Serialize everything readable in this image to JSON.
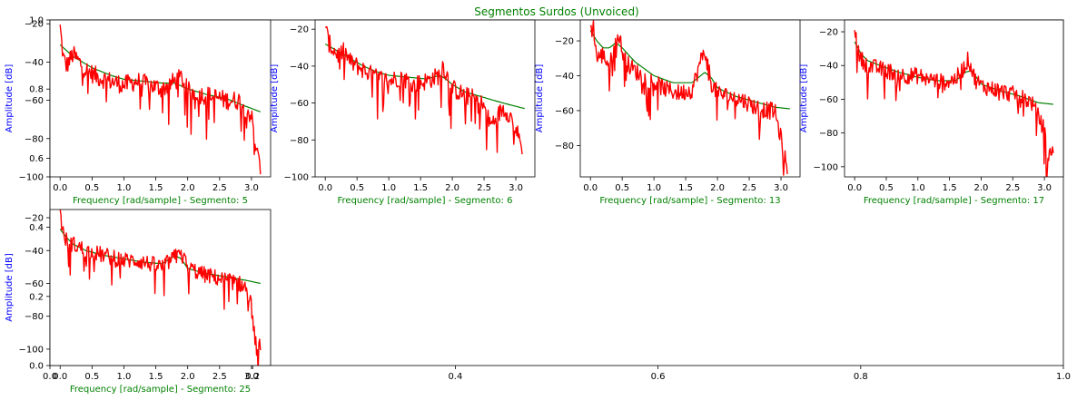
{
  "figure": {
    "suptitle": "Segmentos Surdos (Unvoiced)",
    "colors": {
      "title": "#008000",
      "xlabel": "#008000",
      "ylabel": "#0000ff",
      "envelope": "#008000",
      "spectrum": "#ff0000",
      "axis": "#000000"
    },
    "background_axes": {
      "xlim": [
        0,
        1
      ],
      "ylim": [
        0,
        1
      ],
      "xticks": [
        0.0,
        0.2,
        0.4,
        0.6,
        0.8,
        1.0
      ],
      "xtick_labels": [
        "0.0",
        "0.2",
        "0.4",
        "0.6",
        "0.8",
        "1.0"
      ],
      "yticks": [
        0.0,
        0.2,
        0.4,
        0.6,
        0.8,
        1.0
      ],
      "ytick_labels": [
        "0.0",
        "0.2",
        "0.4",
        "0.6",
        "0.8",
        "1.0"
      ]
    }
  },
  "chart_data": [
    {
      "type": "line",
      "xlabel": "Frequency [rad/sample] - Segmento: 5",
      "ylabel": "Amplitude [dB]",
      "xlim": [
        -0.16,
        3.3
      ],
      "ylim": [
        -100,
        -18
      ],
      "xticks": [
        0.0,
        0.5,
        1.0,
        1.5,
        2.0,
        2.5,
        3.0
      ],
      "xtick_labels": [
        "0.0",
        "0.5",
        "1.0",
        "1.5",
        "2.0",
        "2.5",
        "3.0"
      ],
      "yticks": [
        -20,
        -40,
        -60,
        -80,
        -100
      ],
      "ytick_labels": [
        "−20",
        "−40",
        "−60",
        "−80",
        "−100"
      ],
      "series": [
        {
          "role": "spectrum",
          "x": [
            0,
            0.05,
            0.1,
            0.2,
            0.3,
            0.4,
            0.5,
            0.6,
            0.8,
            1.0,
            1.2,
            1.4,
            1.6,
            1.8,
            1.9,
            2.0,
            2.2,
            2.4,
            2.6,
            2.8,
            2.9,
            3.0,
            3.05,
            3.1,
            3.14
          ],
          "y": [
            -22,
            -38,
            -42,
            -36,
            -40,
            -44,
            -46,
            -48,
            -50,
            -52,
            -50,
            -52,
            -54,
            -50,
            -48,
            -55,
            -57,
            -58,
            -60,
            -60,
            -64,
            -68,
            -80,
            -90,
            -95
          ]
        },
        {
          "role": "envelope",
          "x": [
            0,
            0.1,
            0.2,
            0.3,
            0.5,
            0.8,
            1.0,
            1.3,
            1.6,
            1.8,
            2.0,
            2.3,
            2.6,
            2.9,
            3.14
          ],
          "y": [
            -31,
            -34,
            -37,
            -39,
            -43,
            -47,
            -49,
            -50,
            -51,
            -51,
            -54,
            -57,
            -59,
            -63,
            -66
          ]
        }
      ]
    },
    {
      "type": "line",
      "xlabel": "Frequency [rad/sample] - Segmento: 6",
      "ylabel": "Amplitude [dB]",
      "xlim": [
        -0.16,
        3.3
      ],
      "ylim": [
        -100,
        -15
      ],
      "xticks": [
        0.0,
        0.5,
        1.0,
        1.5,
        2.0,
        2.5,
        3.0
      ],
      "xtick_labels": [
        "0.0",
        "0.5",
        "1.0",
        "1.5",
        "2.0",
        "2.5",
        "3.0"
      ],
      "yticks": [
        -20,
        -40,
        -60,
        -80,
        -100
      ],
      "ytick_labels": [
        "−20",
        "−40",
        "−60",
        "−80",
        "−100"
      ],
      "series": [
        {
          "role": "spectrum",
          "x": [
            0,
            0.05,
            0.1,
            0.2,
            0.3,
            0.4,
            0.6,
            0.8,
            1.0,
            1.2,
            1.4,
            1.6,
            1.8,
            1.85,
            1.9,
            2.0,
            2.2,
            2.4,
            2.5,
            2.6,
            2.8,
            2.9,
            3.0,
            3.1
          ],
          "y": [
            -18,
            -27,
            -30,
            -34,
            -32,
            -38,
            -42,
            -46,
            -48,
            -46,
            -50,
            -48,
            -45,
            -39,
            -44,
            -52,
            -56,
            -58,
            -62,
            -72,
            -63,
            -66,
            -74,
            -84
          ]
        },
        {
          "role": "envelope",
          "x": [
            0,
            0.2,
            0.4,
            0.6,
            0.8,
            1.0,
            1.3,
            1.6,
            1.8,
            1.9,
            2.0,
            2.2,
            2.5,
            2.8,
            3.14
          ],
          "y": [
            -28,
            -32,
            -36,
            -40,
            -43,
            -45,
            -46,
            -47,
            -45,
            -47,
            -50,
            -54,
            -57,
            -60,
            -63
          ]
        }
      ]
    },
    {
      "type": "line",
      "xlabel": "Frequency [rad/sample] - Segmento: 13",
      "ylabel": "Amplitude [dB]",
      "xlim": [
        -0.16,
        3.3
      ],
      "ylim": [
        -98,
        -8
      ],
      "xticks": [
        0.0,
        0.5,
        1.0,
        1.5,
        2.0,
        2.5,
        3.0
      ],
      "xtick_labels": [
        "0.0",
        "0.5",
        "1.0",
        "1.5",
        "2.0",
        "2.5",
        "3.0"
      ],
      "yticks": [
        -20,
        -40,
        -60,
        -80
      ],
      "ytick_labels": [
        "−20",
        "−40",
        "−60",
        "−80"
      ],
      "series": [
        {
          "role": "spectrum",
          "x": [
            0,
            0.05,
            0.1,
            0.2,
            0.3,
            0.4,
            0.45,
            0.5,
            0.6,
            0.8,
            1.0,
            1.2,
            1.4,
            1.6,
            1.75,
            1.8,
            1.85,
            1.9,
            2.0,
            2.2,
            2.4,
            2.6,
            2.8,
            2.9,
            3.0,
            3.05,
            3.1
          ],
          "y": [
            -14,
            -12,
            -30,
            -28,
            -34,
            -22,
            -16,
            -26,
            -34,
            -40,
            -44,
            -48,
            -50,
            -48,
            -30,
            -26,
            -34,
            -44,
            -50,
            -52,
            -54,
            -58,
            -60,
            -60,
            -76,
            -86,
            -92
          ]
        },
        {
          "role": "envelope",
          "x": [
            0,
            0.1,
            0.2,
            0.3,
            0.4,
            0.5,
            0.7,
            1.0,
            1.3,
            1.6,
            1.8,
            1.9,
            2.0,
            2.3,
            2.6,
            2.9,
            3.14
          ],
          "y": [
            -14,
            -20,
            -24,
            -24,
            -21,
            -24,
            -32,
            -40,
            -44,
            -44,
            -38,
            -41,
            -47,
            -52,
            -55,
            -58,
            -59
          ]
        }
      ]
    },
    {
      "type": "line",
      "xlabel": "Frequency [rad/sample] - Segmento: 17",
      "ylabel": "Amplitude [dB]",
      "xlim": [
        -0.16,
        3.3
      ],
      "ylim": [
        -106,
        -13
      ],
      "xticks": [
        0.0,
        0.5,
        1.0,
        1.5,
        2.0,
        2.5,
        3.0
      ],
      "xtick_labels": [
        "0.0",
        "0.5",
        "1.0",
        "1.5",
        "2.0",
        "2.5",
        "3.0"
      ],
      "yticks": [
        -20,
        -40,
        -60,
        -80,
        -100
      ],
      "ytick_labels": [
        "−20",
        "−40",
        "−60",
        "−80",
        "−100"
      ],
      "series": [
        {
          "role": "spectrum",
          "x": [
            0,
            0.05,
            0.1,
            0.2,
            0.4,
            0.6,
            0.8,
            1.0,
            1.2,
            1.4,
            1.6,
            1.75,
            1.8,
            1.85,
            1.9,
            2.0,
            2.2,
            2.4,
            2.6,
            2.8,
            3.0,
            3.05,
            3.1,
            3.14
          ],
          "y": [
            -16,
            -32,
            -36,
            -40,
            -42,
            -44,
            -46,
            -46,
            -48,
            -50,
            -48,
            -40,
            -36,
            -42,
            -48,
            -52,
            -54,
            -56,
            -58,
            -62,
            -78,
            -96,
            -92,
            -88
          ]
        },
        {
          "role": "envelope",
          "x": [
            0,
            0.1,
            0.2,
            0.4,
            0.7,
            1.0,
            1.3,
            1.6,
            1.75,
            1.85,
            2.0,
            2.3,
            2.6,
            2.9,
            3.14
          ],
          "y": [
            -26,
            -33,
            -37,
            -40,
            -44,
            -47,
            -49,
            -49,
            -44,
            -43,
            -51,
            -55,
            -58,
            -62,
            -63
          ]
        }
      ]
    },
    {
      "type": "line",
      "xlabel": "Frequency [rad/sample] - Segmento: 25",
      "ylabel": "Amplitude [dB]",
      "xlim": [
        -0.16,
        3.3
      ],
      "ylim": [
        -110,
        -15
      ],
      "xticks": [
        0.0,
        0.5,
        1.0,
        1.5,
        2.0,
        2.5,
        3.0
      ],
      "xtick_labels": [
        "0.0",
        "0.5",
        "1.0",
        "1.5",
        "2.0",
        "2.5",
        "3.0"
      ],
      "yticks": [
        -20,
        -40,
        -60,
        -80,
        -100
      ],
      "ytick_labels": [
        "−20",
        "−40",
        "−60",
        "−80",
        "−100"
      ],
      "series": [
        {
          "role": "spectrum",
          "x": [
            0,
            0.05,
            0.1,
            0.2,
            0.4,
            0.6,
            0.8,
            1.0,
            1.2,
            1.4,
            1.6,
            1.8,
            1.85,
            1.9,
            2.0,
            2.2,
            2.4,
            2.6,
            2.8,
            2.9,
            3.0,
            3.05,
            3.1,
            3.14
          ],
          "y": [
            -17,
            -30,
            -34,
            -36,
            -40,
            -42,
            -44,
            -46,
            -46,
            -48,
            -50,
            -44,
            -36,
            -42,
            -50,
            -54,
            -56,
            -58,
            -60,
            -62,
            -74,
            -92,
            -104,
            -96
          ]
        },
        {
          "role": "envelope",
          "x": [
            0,
            0.1,
            0.2,
            0.4,
            0.7,
            1.0,
            1.3,
            1.6,
            1.8,
            1.9,
            2.0,
            2.3,
            2.6,
            2.9,
            3.14
          ],
          "y": [
            -27,
            -32,
            -36,
            -40,
            -43,
            -45,
            -47,
            -48,
            -43,
            -45,
            -51,
            -54,
            -56,
            -58,
            -60
          ]
        }
      ]
    }
  ]
}
